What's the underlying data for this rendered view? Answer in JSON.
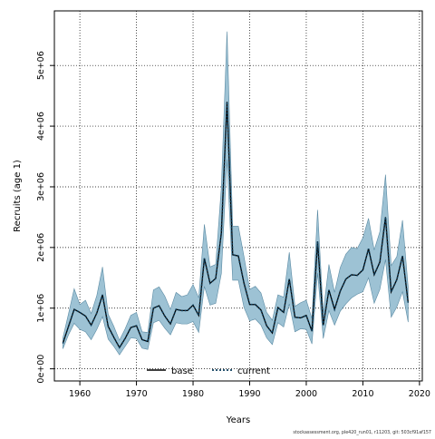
{
  "chart_data": {
    "type": "area",
    "title": "",
    "xlabel": "Years",
    "ylabel": "Recruits (age 1)",
    "xlim": [
      1955.5,
      2020.5
    ],
    "ylim": [
      -200000,
      5900000
    ],
    "x_ticks": [
      1960,
      1970,
      1980,
      1990,
      2000,
      2010,
      2020
    ],
    "x_tick_labels": [
      "1960",
      "1970",
      "1980",
      "1990",
      "2000",
      "2010",
      "2020"
    ],
    "y_ticks": [
      0,
      1000000,
      2000000,
      3000000,
      4000000,
      5000000
    ],
    "y_tick_labels": [
      "0e+00",
      "1e+06",
      "2e+06",
      "3e+06",
      "4e+06",
      "5e+06"
    ],
    "grid": true,
    "legend_position": "bottom",
    "colors": {
      "band": "#9dc2d4",
      "band_edge": "#5a8aa3",
      "base": "#000000",
      "current": "#0b3d5c"
    },
    "x": [
      1957,
      1958,
      1959,
      1960,
      1961,
      1962,
      1963,
      1964,
      1965,
      1966,
      1967,
      1968,
      1969,
      1970,
      1971,
      1972,
      1973,
      1974,
      1975,
      1976,
      1977,
      1978,
      1979,
      1980,
      1981,
      1982,
      1983,
      1984,
      1985,
      1986,
      1987,
      1988,
      1989,
      1990,
      1991,
      1992,
      1993,
      1994,
      1995,
      1996,
      1997,
      1998,
      1999,
      2000,
      2001,
      2002,
      2003,
      2004,
      2005,
      2006,
      2007,
      2008,
      2009,
      2010,
      2011,
      2012,
      2013,
      2014,
      2015,
      2016,
      2017,
      2018
    ],
    "series": [
      {
        "name": "base",
        "style": "solid",
        "values": [
          420000,
          700000,
          980000,
          930000,
          870000,
          720000,
          920000,
          1220000,
          700000,
          520000,
          350000,
          500000,
          680000,
          710000,
          480000,
          450000,
          1000000,
          1040000,
          870000,
          740000,
          980000,
          960000,
          960000,
          1050000,
          880000,
          1820000,
          1410000,
          1490000,
          2240000,
          4400000,
          1880000,
          1860000,
          1410000,
          1060000,
          1060000,
          970000,
          710000,
          590000,
          1010000,
          930000,
          1480000,
          850000,
          840000,
          880000,
          620000,
          2100000,
          720000,
          1300000,
          980000,
          1280000,
          1480000,
          1550000,
          1540000,
          1630000,
          1980000,
          1550000,
          1760000,
          2500000,
          1270000,
          1470000,
          1860000,
          1090000
        ]
      },
      {
        "name": "current",
        "style": "dotted",
        "values": [
          420000,
          700000,
          980000,
          930000,
          870000,
          720000,
          920000,
          1220000,
          700000,
          520000,
          350000,
          500000,
          680000,
          710000,
          480000,
          450000,
          1000000,
          1040000,
          870000,
          740000,
          980000,
          960000,
          960000,
          1050000,
          880000,
          1820000,
          1410000,
          1490000,
          2240000,
          4400000,
          1880000,
          1860000,
          1410000,
          1060000,
          1060000,
          970000,
          710000,
          590000,
          1010000,
          930000,
          1480000,
          850000,
          840000,
          880000,
          620000,
          2100000,
          720000,
          1300000,
          980000,
          1280000,
          1480000,
          1550000,
          1540000,
          1630000,
          1980000,
          1550000,
          1760000,
          2500000,
          1270000,
          1470000,
          1860000,
          1090000
        ]
      }
    ],
    "band_lower": [
      330000,
      560000,
      750000,
      650000,
      610000,
      480000,
      650000,
      860000,
      490000,
      370000,
      230000,
      370000,
      510000,
      500000,
      340000,
      320000,
      760000,
      800000,
      670000,
      560000,
      760000,
      740000,
      740000,
      780000,
      600000,
      1360000,
      1050000,
      1080000,
      1570000,
      3450000,
      1460000,
      1460000,
      1010000,
      790000,
      820000,
      720000,
      510000,
      400000,
      760000,
      690000,
      1070000,
      610000,
      660000,
      650000,
      410000,
      1580000,
      500000,
      960000,
      720000,
      950000,
      1070000,
      1170000,
      1230000,
      1270000,
      1500000,
      1080000,
      1310000,
      1800000,
      850000,
      1020000,
      1270000,
      770000
    ],
    "band_upper": [
      510000,
      910000,
      1320000,
      1060000,
      1130000,
      910000,
      1210000,
      1680000,
      900000,
      700000,
      470000,
      660000,
      880000,
      930000,
      610000,
      600000,
      1300000,
      1350000,
      1200000,
      980000,
      1260000,
      1190000,
      1220000,
      1390000,
      1170000,
      2380000,
      1680000,
      1720000,
      2990000,
      5560000,
      2350000,
      2350000,
      1850000,
      1310000,
      1360000,
      1250000,
      930000,
      800000,
      1220000,
      1180000,
      1920000,
      1030000,
      1090000,
      1130000,
      830000,
      2620000,
      920000,
      1720000,
      1260000,
      1670000,
      1890000,
      2000000,
      1980000,
      2160000,
      2480000,
      1960000,
      2260000,
      3200000,
      1700000,
      1850000,
      2450000,
      1350000
    ]
  },
  "legend": [
    {
      "label": "base",
      "line_style": "solid"
    },
    {
      "label": "current",
      "line_style": "dotted"
    }
  ],
  "footer": "stockassessment.org, ple420_run01, r11203, git: 503cf91af157"
}
